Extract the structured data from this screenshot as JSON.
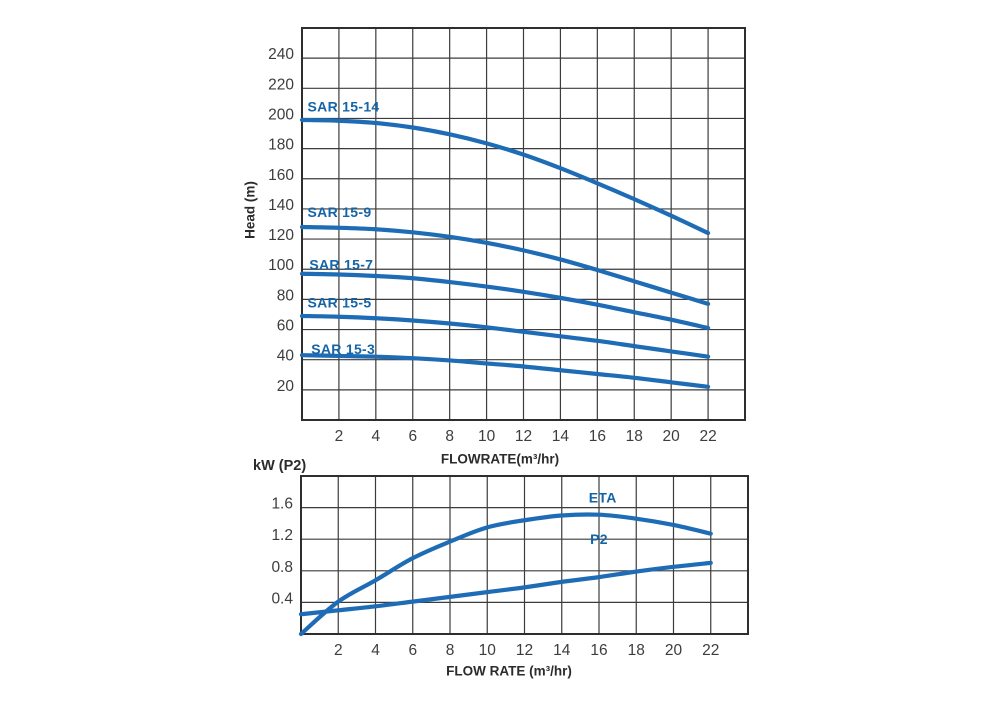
{
  "colors": {
    "curve_blue": "#1e6cb5",
    "series_label_blue": "#1464a8",
    "grid_color": "#3c3c3c",
    "axis_border": "#2e2e2e",
    "tick_text": "#3d3d3d",
    "axis_title_text": "#2b2b2b",
    "background": "#ffffff"
  },
  "chart_data": [
    {
      "id": "head",
      "type": "line",
      "title": "",
      "xlabel": "FLOWRATE(m³/hr)",
      "ylabel": "Head (m)",
      "xlim": [
        0,
        24
      ],
      "ylim": [
        0,
        260
      ],
      "x_grid_step": 2,
      "y_grid_step": 20,
      "grid": true,
      "x_ticks": [
        2,
        4,
        6,
        8,
        10,
        12,
        14,
        16,
        18,
        20,
        22
      ],
      "y_ticks": [
        20,
        40,
        60,
        80,
        100,
        120,
        140,
        160,
        180,
        200,
        220,
        240
      ],
      "series": [
        {
          "name": "SAR 15-14",
          "label_x": 0.3,
          "label_y": 208,
          "label_anchor": "start",
          "points": [
            [
              0,
              199
            ],
            [
              2,
              198.5
            ],
            [
              4,
              197
            ],
            [
              6,
              194
            ],
            [
              8,
              189.5
            ],
            [
              10,
              183.5
            ],
            [
              12,
              176
            ],
            [
              14,
              167
            ],
            [
              16,
              157
            ],
            [
              18,
              146.5
            ],
            [
              20,
              135.5
            ],
            [
              22,
              124
            ]
          ]
        },
        {
          "name": "SAR 15-9",
          "label_x": 0.3,
          "label_y": 138,
          "label_anchor": "start",
          "points": [
            [
              0,
              128
            ],
            [
              2,
              127.5
            ],
            [
              4,
              126.5
            ],
            [
              6,
              124.5
            ],
            [
              8,
              121.5
            ],
            [
              10,
              117.5
            ],
            [
              12,
              112.5
            ],
            [
              14,
              106.5
            ],
            [
              16,
              99.5
            ],
            [
              18,
              92
            ],
            [
              20,
              84.5
            ],
            [
              22,
              77
            ]
          ]
        },
        {
          "name": "SAR 15-7",
          "label_x": 0.4,
          "label_y": 103,
          "label_anchor": "start",
          "points": [
            [
              0,
              97
            ],
            [
              2,
              96.5
            ],
            [
              4,
              95.5
            ],
            [
              6,
              94
            ],
            [
              8,
              91.5
            ],
            [
              10,
              88.5
            ],
            [
              12,
              85
            ],
            [
              14,
              81
            ],
            [
              16,
              76.5
            ],
            [
              18,
              71.5
            ],
            [
              20,
              66.5
            ],
            [
              22,
              61
            ]
          ]
        },
        {
          "name": "SAR 15-5",
          "label_x": 0.3,
          "label_y": 78,
          "label_anchor": "start",
          "points": [
            [
              0,
              69
            ],
            [
              2,
              68.5
            ],
            [
              4,
              67.5
            ],
            [
              6,
              66
            ],
            [
              8,
              64
            ],
            [
              10,
              61.5
            ],
            [
              12,
              58.5
            ],
            [
              14,
              55.5
            ],
            [
              16,
              52.5
            ],
            [
              18,
              49
            ],
            [
              20,
              45.5
            ],
            [
              22,
              42
            ]
          ]
        },
        {
          "name": "SAR 15-3",
          "label_x": 0.5,
          "label_y": 47,
          "label_anchor": "start",
          "points": [
            [
              0,
              43
            ],
            [
              2,
              42.5
            ],
            [
              4,
              42
            ],
            [
              6,
              41
            ],
            [
              8,
              39.5
            ],
            [
              10,
              37.5
            ],
            [
              12,
              35.5
            ],
            [
              14,
              33
            ],
            [
              16,
              30.5
            ],
            [
              18,
              28
            ],
            [
              20,
              25
            ],
            [
              22,
              22
            ]
          ]
        }
      ]
    },
    {
      "id": "power",
      "type": "line",
      "title": "",
      "xlabel": "FLOW RATE (m³/hr)",
      "ylabel": "kW (P2)",
      "xlim": [
        0,
        24
      ],
      "ylim": [
        0,
        2
      ],
      "x_grid_step": 2,
      "y_grid_step": 0.4,
      "grid": true,
      "x_ticks": [
        2,
        4,
        6,
        8,
        10,
        12,
        14,
        16,
        18,
        20,
        22
      ],
      "y_ticks": [
        "0.4",
        "0.8",
        "1.2",
        "1.6"
      ],
      "series": [
        {
          "name": "ETA",
          "label_x": 16.2,
          "label_y": 1.73,
          "label_anchor": "middle",
          "points": [
            [
              0,
              0
            ],
            [
              2,
              0.41
            ],
            [
              4,
              0.68
            ],
            [
              6,
              0.96
            ],
            [
              8,
              1.17
            ],
            [
              10,
              1.35
            ],
            [
              12,
              1.44
            ],
            [
              14,
              1.5
            ],
            [
              16,
              1.51
            ],
            [
              18,
              1.46
            ],
            [
              20,
              1.38
            ],
            [
              22,
              1.27
            ]
          ]
        },
        {
          "name": "P2",
          "label_x": 16.0,
          "label_y": 1.2,
          "label_anchor": "middle",
          "points": [
            [
              0,
              0.25
            ],
            [
              2,
              0.3
            ],
            [
              4,
              0.35
            ],
            [
              6,
              0.41
            ],
            [
              8,
              0.47
            ],
            [
              10,
              0.53
            ],
            [
              12,
              0.59
            ],
            [
              14,
              0.66
            ],
            [
              16,
              0.72
            ],
            [
              18,
              0.79
            ],
            [
              20,
              0.85
            ],
            [
              22,
              0.9
            ]
          ]
        }
      ]
    }
  ]
}
